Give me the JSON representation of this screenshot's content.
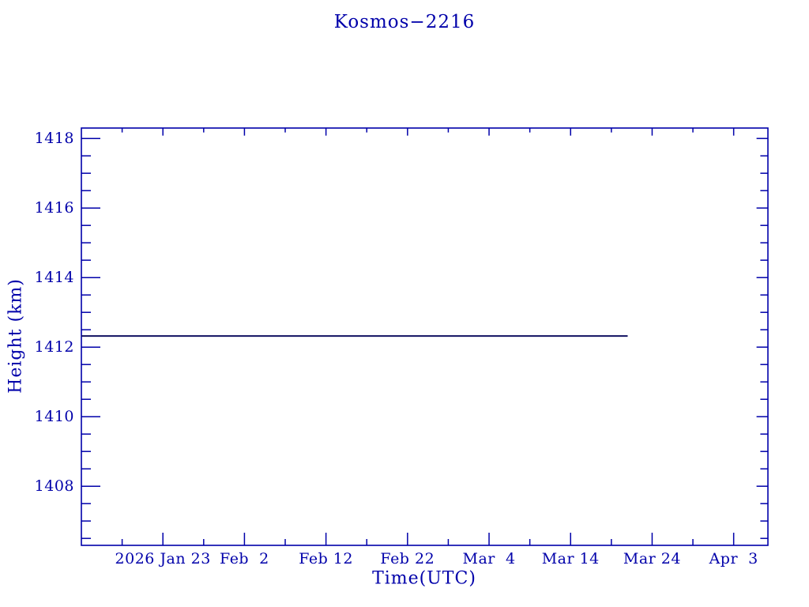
{
  "window": {
    "background": "#ffffff"
  },
  "chart": {
    "title": "Kosmos−2216",
    "xlabel": "Time(UTC)",
    "ylabel": "Height (km)",
    "colors": {
      "axis": "#0000aa",
      "text": "#0000aa",
      "series_line": "#101060"
    }
  },
  "chart_data": {
    "type": "line",
    "title": "Kosmos−2216",
    "xlabel": "Time(UTC)",
    "ylabel": "Height (km)",
    "grid": false,
    "legend": false,
    "x_axis": {
      "start_date": "2026-01-13",
      "end_date": "2026-04-07",
      "domain_days": [
        0,
        84.2
      ],
      "major_tick_days": [
        10,
        20,
        30,
        40,
        50,
        60,
        70,
        80
      ],
      "major_tick_labels": [
        "2026 Jan 23",
        "Feb  2",
        "Feb 12",
        "Feb 22",
        "Mar  4",
        "Mar 14",
        "Mar 24",
        "Apr  3"
      ],
      "minor_tick_days": [
        5,
        15,
        25,
        35,
        45,
        55,
        65,
        75
      ]
    },
    "y_axis": {
      "ylim": [
        1406.3,
        1418.3
      ],
      "major_ticks": [
        1408,
        1410,
        1412,
        1414,
        1416,
        1418
      ],
      "major_tick_labels": [
        "1408",
        "1410",
        "1412",
        "1414",
        "1416",
        "1418"
      ],
      "minor_step": 0.5
    },
    "series": [
      {
        "name": "Kosmos-2216 height",
        "color": "#101060",
        "points": [
          {
            "date": "2026-01-13",
            "day": 0,
            "value": 1412.32
          },
          {
            "date": "2026-03-21",
            "day": 67,
            "value": 1412.32
          }
        ]
      }
    ]
  }
}
